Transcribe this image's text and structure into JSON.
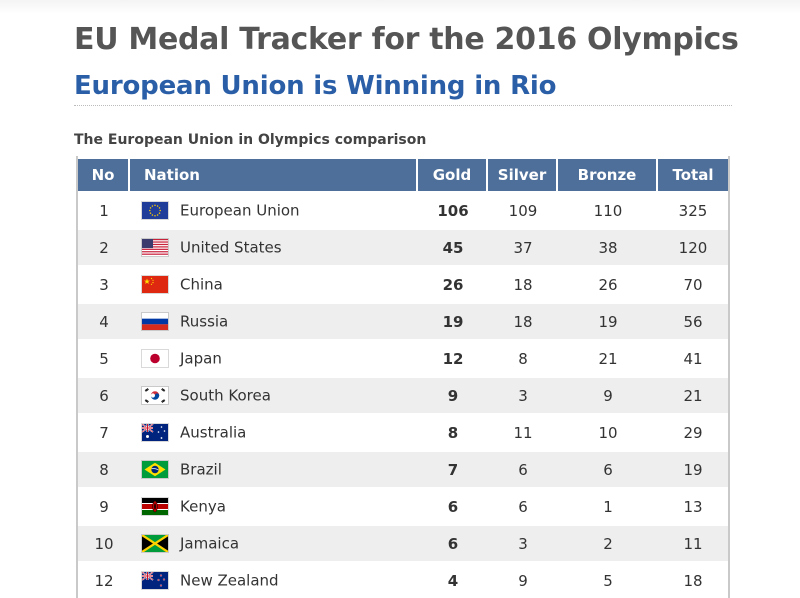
{
  "header": {
    "title": "EU Medal Tracker for the 2016 Olympics",
    "subtitle": "European Union is Winning in Rio",
    "caption": "The European Union in Olympics comparison"
  },
  "table": {
    "columns": {
      "no": "No",
      "nation": "Nation",
      "gold": "Gold",
      "silver": "Silver",
      "bronze": "Bronze",
      "total": "Total"
    },
    "rows": [
      {
        "no": "1",
        "flag": "eu-flag-icon",
        "nation": "European Union",
        "gold": "106",
        "silver": "109",
        "bronze": "110",
        "total": "325"
      },
      {
        "no": "2",
        "flag": "us-flag-icon",
        "nation": "United States",
        "gold": "45",
        "silver": "37",
        "bronze": "38",
        "total": "120"
      },
      {
        "no": "3",
        "flag": "china-flag-icon",
        "nation": "China",
        "gold": "26",
        "silver": "18",
        "bronze": "26",
        "total": "70"
      },
      {
        "no": "4",
        "flag": "russia-flag-icon",
        "nation": "Russia",
        "gold": "19",
        "silver": "18",
        "bronze": "19",
        "total": "56"
      },
      {
        "no": "5",
        "flag": "japan-flag-icon",
        "nation": "Japan",
        "gold": "12",
        "silver": "8",
        "bronze": "21",
        "total": "41"
      },
      {
        "no": "6",
        "flag": "south-korea-flag-icon",
        "nation": "South Korea",
        "gold": "9",
        "silver": "3",
        "bronze": "9",
        "total": "21"
      },
      {
        "no": "7",
        "flag": "australia-flag-icon",
        "nation": "Australia",
        "gold": "8",
        "silver": "11",
        "bronze": "10",
        "total": "29"
      },
      {
        "no": "8",
        "flag": "brazil-flag-icon",
        "nation": "Brazil",
        "gold": "7",
        "silver": "6",
        "bronze": "6",
        "total": "19"
      },
      {
        "no": "9",
        "flag": "kenya-flag-icon",
        "nation": "Kenya",
        "gold": "6",
        "silver": "6",
        "bronze": "1",
        "total": "13"
      },
      {
        "no": "10",
        "flag": "jamaica-flag-icon",
        "nation": "Jamaica",
        "gold": "6",
        "silver": "3",
        "bronze": "2",
        "total": "11"
      },
      {
        "no": "12",
        "flag": "new-zealand-flag-icon",
        "nation": "New Zealand",
        "gold": "4",
        "silver": "9",
        "bronze": "5",
        "total": "18"
      }
    ]
  },
  "colors": {
    "title": "#555555",
    "subtitle": "#2a5fa8",
    "table_header_bg": "#4e6f99",
    "row_stripe": "#eeeeee"
  }
}
